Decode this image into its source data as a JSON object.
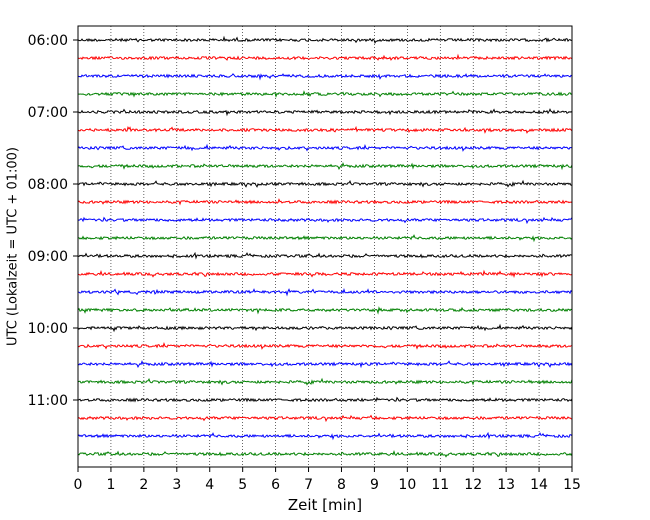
{
  "chart_data": {
    "type": "line",
    "title": "",
    "xlabel": "Zeit  [min]",
    "ylabel": "UTC (Lokalzeit = UTC + 01:00)",
    "xlim": [
      0,
      15
    ],
    "x_ticks": [
      0,
      1,
      2,
      3,
      4,
      5,
      6,
      7,
      8,
      9,
      10,
      11,
      12,
      13,
      14,
      15
    ],
    "x_tick_labels": [
      "0",
      "1",
      "2",
      "3",
      "4",
      "5",
      "6",
      "7",
      "8",
      "9",
      "10",
      "11",
      "12",
      "13",
      "14",
      "15"
    ],
    "y_tick_labels": [
      "06:00",
      "07:00",
      "08:00",
      "09:00",
      "10:00",
      "11:00"
    ],
    "grid": "vertical-dotted",
    "legend": "none",
    "trace_colors": [
      "#000000",
      "#ff0000",
      "#0000ff",
      "#008000"
    ],
    "traces": [
      {
        "start": "06:00",
        "color": "#000000"
      },
      {
        "start": "06:15",
        "color": "#ff0000"
      },
      {
        "start": "06:30",
        "color": "#0000ff"
      },
      {
        "start": "06:45",
        "color": "#008000"
      },
      {
        "start": "07:00",
        "color": "#000000"
      },
      {
        "start": "07:15",
        "color": "#ff0000"
      },
      {
        "start": "07:30",
        "color": "#0000ff"
      },
      {
        "start": "07:45",
        "color": "#008000"
      },
      {
        "start": "08:00",
        "color": "#000000"
      },
      {
        "start": "08:15",
        "color": "#ff0000"
      },
      {
        "start": "08:30",
        "color": "#0000ff"
      },
      {
        "start": "08:45",
        "color": "#008000"
      },
      {
        "start": "09:00",
        "color": "#000000"
      },
      {
        "start": "09:15",
        "color": "#ff0000"
      },
      {
        "start": "09:30",
        "color": "#0000ff"
      },
      {
        "start": "09:45",
        "color": "#008000"
      },
      {
        "start": "10:00",
        "color": "#000000"
      },
      {
        "start": "10:15",
        "color": "#ff0000"
      },
      {
        "start": "10:30",
        "color": "#0000ff"
      },
      {
        "start": "10:45",
        "color": "#008000"
      },
      {
        "start": "11:00",
        "color": "#000000"
      },
      {
        "start": "11:15",
        "color": "#ff0000"
      },
      {
        "start": "11:30",
        "color": "#0000ff"
      },
      {
        "start": "11:45",
        "color": "#008000"
      }
    ]
  }
}
